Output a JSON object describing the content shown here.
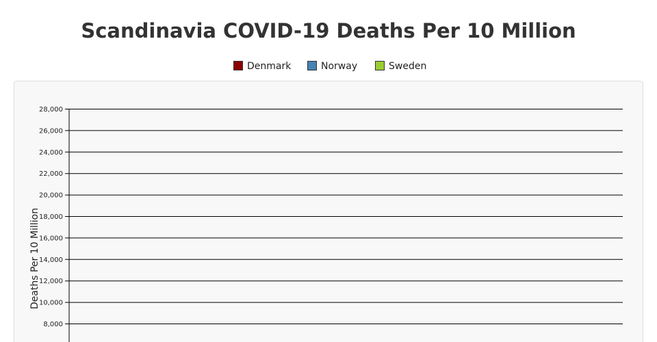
{
  "chart_data": {
    "type": "line",
    "title": "Scandinavia COVID-19 Deaths Per 10 Million",
    "ylabel": "Deaths Per 10 Million",
    "xlabel": "",
    "ylim": [
      0,
      28000
    ],
    "yticks": [
      "8,000",
      "10,000",
      "12,000",
      "14,000",
      "16,000",
      "18,000",
      "20,000",
      "22,000",
      "24,000",
      "26,000",
      "28,000"
    ],
    "ytick_values": [
      8000,
      10000,
      12000,
      14000,
      16000,
      18000,
      20000,
      22000,
      24000,
      26000,
      28000
    ],
    "grid": true,
    "legend_placement": "top",
    "series": [
      {
        "name": "Denmark",
        "color": "#8b0000",
        "values": []
      },
      {
        "name": "Norway",
        "color": "#4682b4",
        "values": []
      },
      {
        "name": "Sweden",
        "color": "#9acd32",
        "values": []
      }
    ]
  }
}
